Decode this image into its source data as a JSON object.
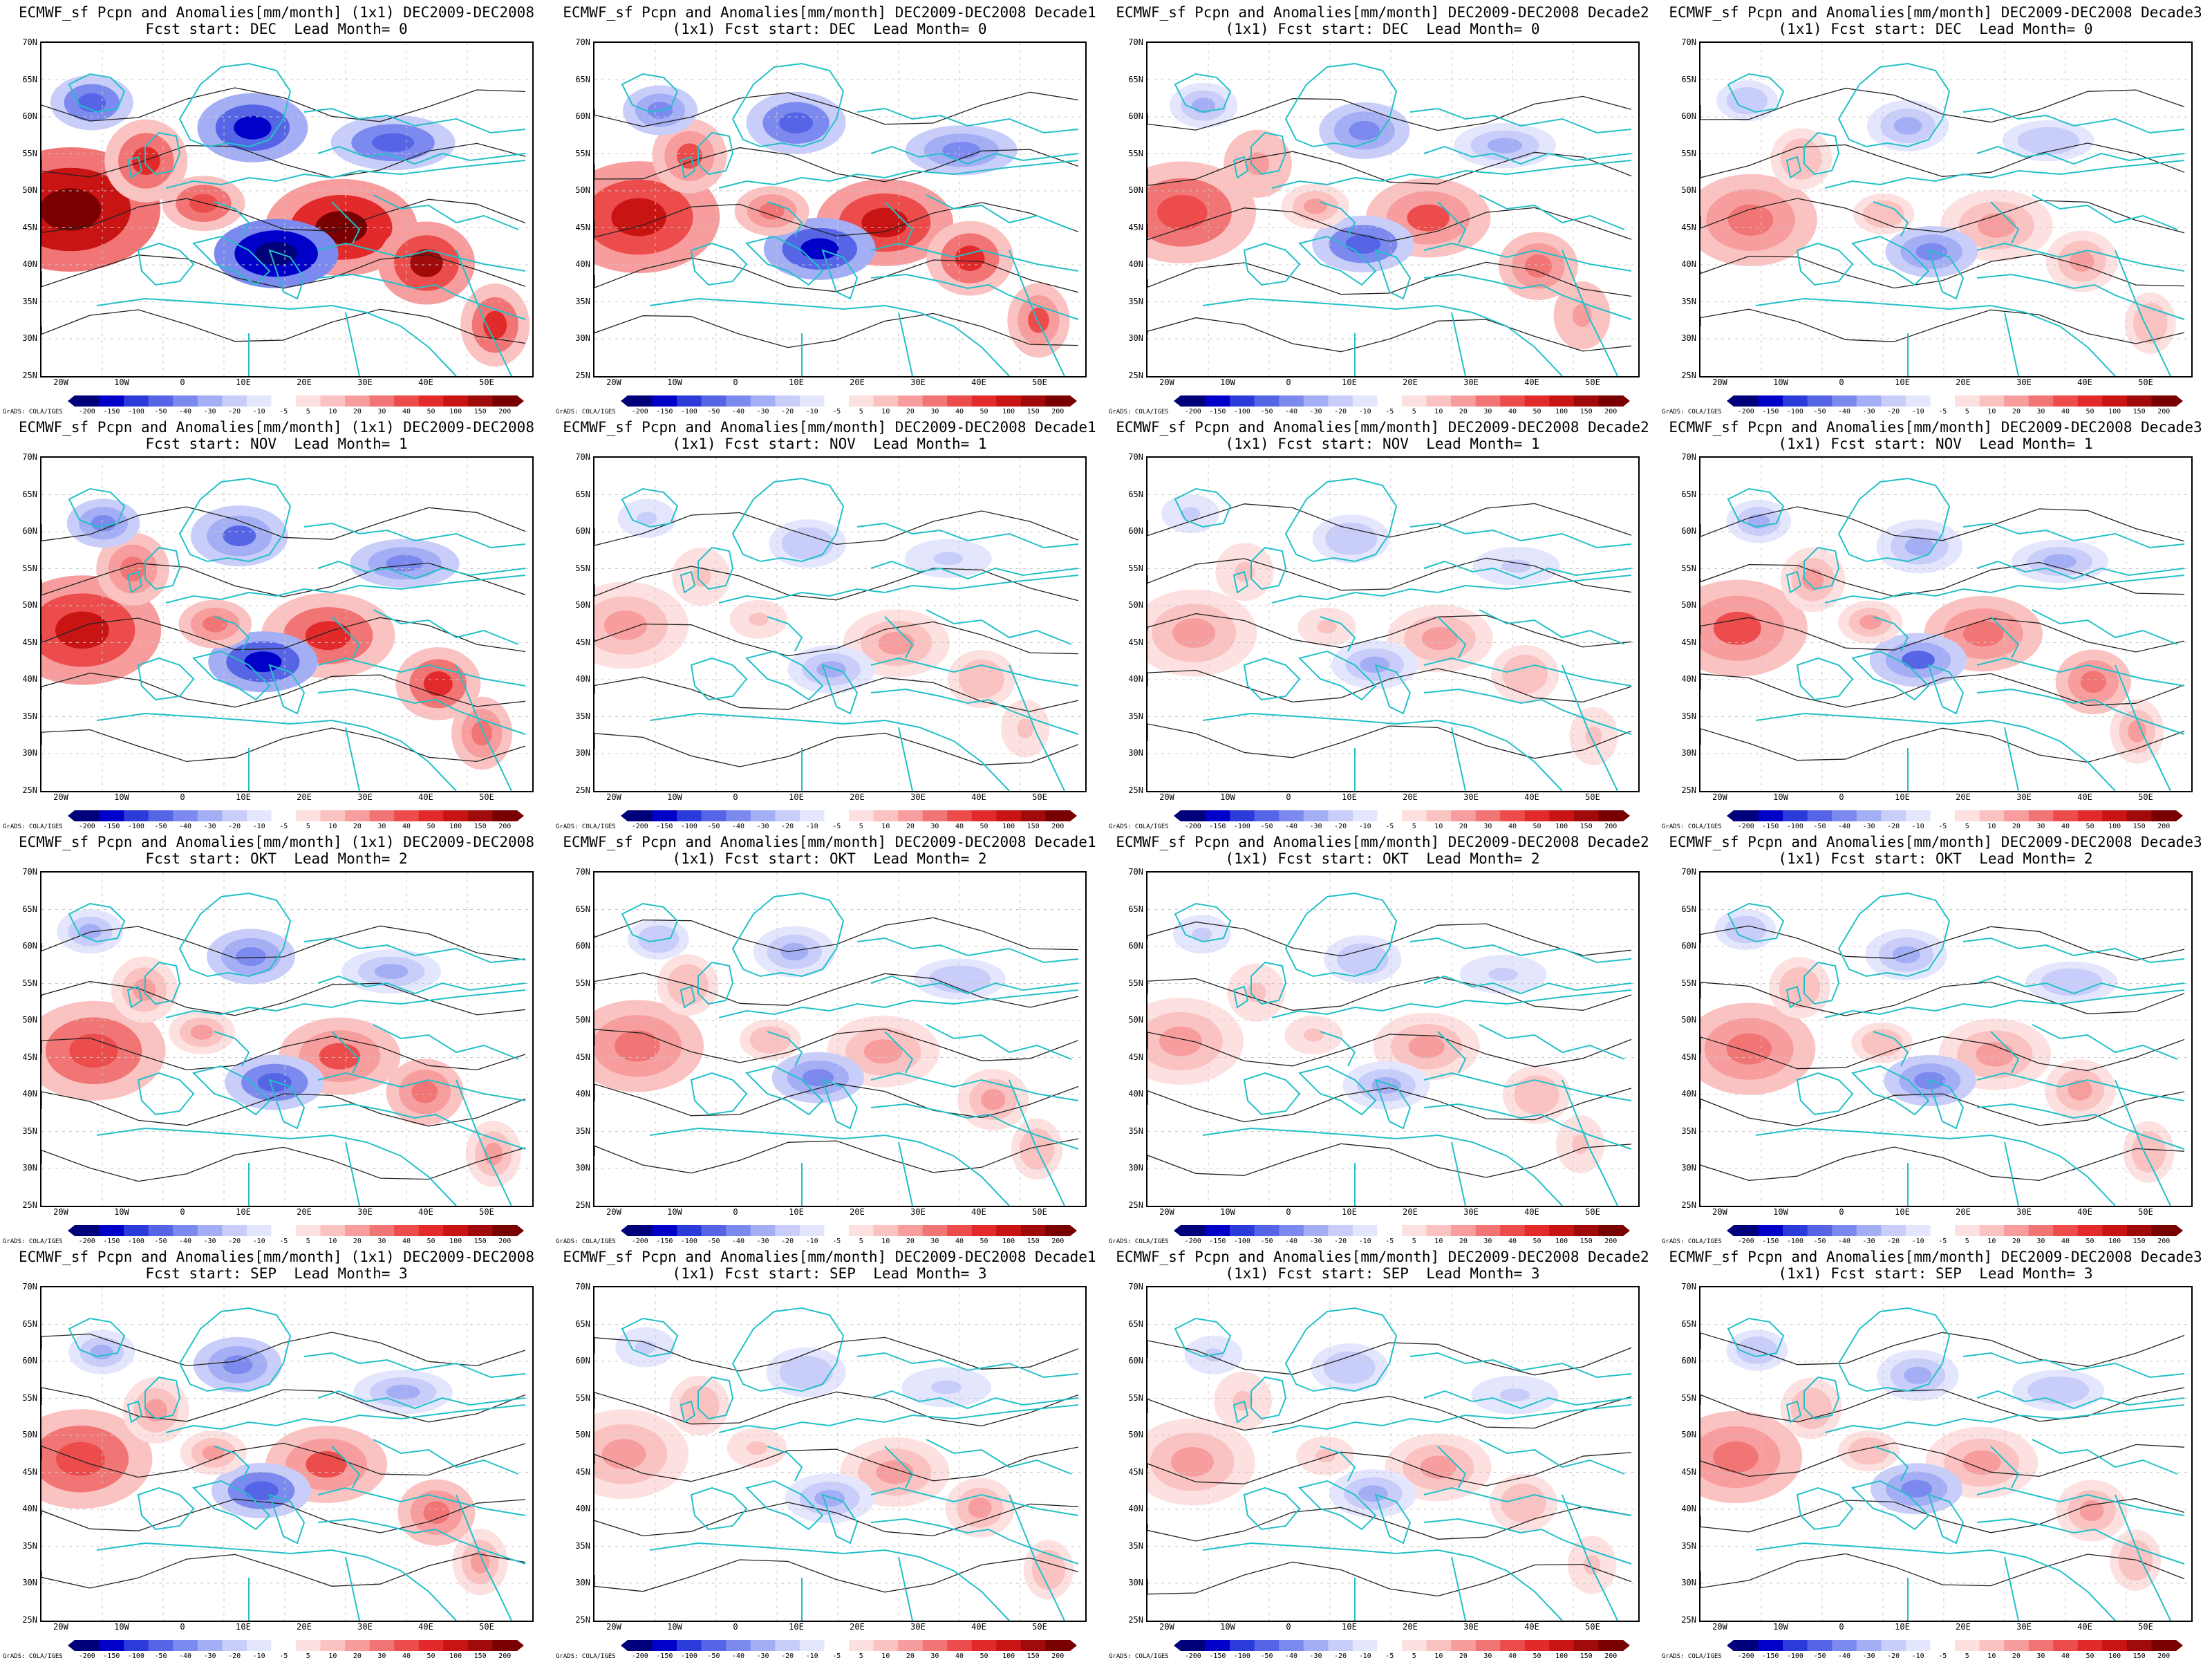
{
  "legend": {
    "ticks": [
      "-200",
      "-150",
      "-100",
      "-50",
      "-40",
      "-30",
      "-20",
      "-10",
      "-5",
      "5",
      "10",
      "20",
      "30",
      "40",
      "50",
      "100",
      "150",
      "200"
    ],
    "colors": [
      "#00007a",
      "#0000c8",
      "#2b3bd9",
      "#5565e6",
      "#7c89ef",
      "#a4aef5",
      "#c8cdf9",
      "#e3e6fd",
      "#ffffff",
      "#fde0e0",
      "#fbc2c2",
      "#f79d9d",
      "#f27575",
      "#ec4c4c",
      "#e22a2a",
      "#c91414",
      "#a00a0a",
      "#780000"
    ],
    "credit": "GrADS: COLA/IGES"
  },
  "axes": {
    "lat_labels": [
      "70N",
      "65N",
      "60N",
      "55N",
      "50N",
      "45N",
      "40N",
      "35N",
      "30N",
      "25N"
    ],
    "lon_labels": [
      "20W",
      "10W",
      "0",
      "10E",
      "20E",
      "30E",
      "40E",
      "50E"
    ]
  },
  "panels": [
    {
      "title1": "ECMWF_sf Pcpn and Anomalies[mm/month] (1x1) DEC2009-DEC2008",
      "title2": "Fcst start: DEC  Lead Month= 0",
      "intensity": 1.0
    },
    {
      "title1": "ECMWF_sf Pcpn and Anomalies[mm/month] DEC2009-DEC2008 Decade1",
      "title2": "(1x1) Fcst start: DEC  Lead Month= 0",
      "intensity": 0.75
    },
    {
      "title1": "ECMWF_sf Pcpn and Anomalies[mm/month] DEC2009-DEC2008 Decade2",
      "title2": "(1x1) Fcst start: DEC  Lead Month= 0",
      "intensity": 0.55
    },
    {
      "title1": "ECMWF_sf Pcpn and Anomalies[mm/month] DEC2009-DEC2008 Decade3",
      "title2": "(1x1) Fcst start: DEC  Lead Month= 0",
      "intensity": 0.35
    },
    {
      "title1": "ECMWF_sf Pcpn and Anomalies[mm/month] (1x1) DEC2009-DEC2008",
      "title2": "Fcst start: NOV  Lead Month= 1",
      "intensity": 0.7
    },
    {
      "title1": "ECMWF_sf Pcpn and Anomalies[mm/month] DEC2009-DEC2008 Decade1",
      "title2": "(1x1) Fcst start: NOV  Lead Month= 1",
      "intensity": 0.25
    },
    {
      "title1": "ECMWF_sf Pcpn and Anomalies[mm/month] DEC2009-DEC2008 Decade2",
      "title2": "(1x1) Fcst start: NOV  Lead Month= 1",
      "intensity": 0.25
    },
    {
      "title1": "ECMWF_sf Pcpn and Anomalies[mm/month] DEC2009-DEC2008 Decade3",
      "title2": "(1x1) Fcst start: NOV  Lead Month= 1",
      "intensity": 0.45
    },
    {
      "title1": "ECMWF_sf Pcpn and Anomalies[mm/month] (1x1) DEC2009-DEC2008",
      "title2": "Fcst start: OKT  Lead Month= 2",
      "intensity": 0.5
    },
    {
      "title1": "ECMWF_sf Pcpn and Anomalies[mm/month] DEC2009-DEC2008 Decade1",
      "title2": "(1x1) Fcst start: OKT  Lead Month= 2",
      "intensity": 0.35
    },
    {
      "title1": "ECMWF_sf Pcpn and Anomalies[mm/month] DEC2009-DEC2008 Decade2",
      "title2": "(1x1) Fcst start: OKT  Lead Month= 2",
      "intensity": 0.25
    },
    {
      "title1": "ECMWF_sf Pcpn and Anomalies[mm/month] DEC2009-DEC2008 Decade3",
      "title2": "(1x1) Fcst start: OKT  Lead Month= 2",
      "intensity": 0.35
    },
    {
      "title1": "ECMWF_sf Pcpn and Anomalies[mm/month] (1x1) DEC2009-DEC2008",
      "title2": "Fcst start: SEP  Lead Month= 3",
      "intensity": 0.5
    },
    {
      "title1": "ECMWF_sf Pcpn and Anomalies[mm/month] DEC2009-DEC2008 Decade1",
      "title2": "(1x1) Fcst start: SEP  Lead Month= 3",
      "intensity": 0.3
    },
    {
      "title1": "ECMWF_sf Pcpn and Anomalies[mm/month] DEC2009-DEC2008 Decade2",
      "title2": "(1x1) Fcst start: SEP  Lead Month= 3",
      "intensity": 0.25
    },
    {
      "title1": "ECMWF_sf Pcpn and Anomalies[mm/month] DEC2009-DEC2008 Decade3",
      "title2": "(1x1) Fcst start: SEP  Lead Month= 3",
      "intensity": 0.35
    }
  ]
}
